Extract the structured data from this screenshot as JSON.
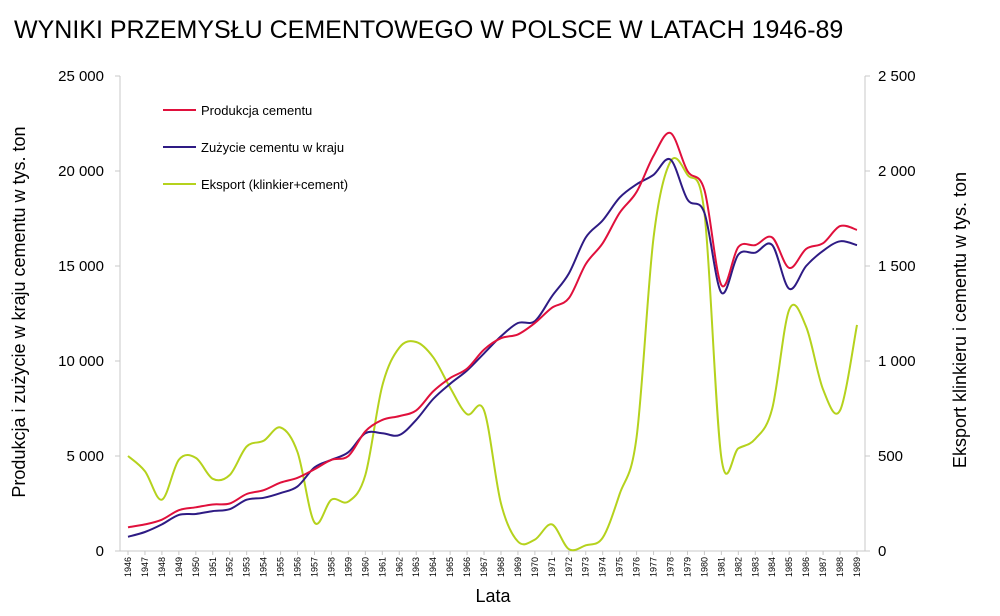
{
  "chart_data": {
    "type": "line",
    "title": "WYNIKI PRZEMYSŁU CEMENTOWEGO W POLSCE W LATACH 1946-89",
    "xlabel": "Lata",
    "ylabel_left": "Produkcja i zużycie w kraju cementu w tys. ton",
    "ylabel_right": "Eksport klinkieru i cementu w tys. ton",
    "ylim_left": [
      0,
      25000
    ],
    "ylim_right": [
      0,
      2500
    ],
    "yticks_left": [
      "0",
      "5 000",
      "10 000",
      "15 000",
      "20 000",
      "25 000"
    ],
    "yticks_right": [
      "0",
      "500",
      "1 000",
      "1 500",
      "2 000",
      "2 500"
    ],
    "yticks_left_values": [
      0,
      5000,
      10000,
      15000,
      20000,
      25000
    ],
    "yticks_right_values": [
      0,
      500,
      1000,
      1500,
      2000,
      2500
    ],
    "grid": false,
    "legend_position": "top-left",
    "x": [
      1946,
      1947,
      1948,
      1949,
      1950,
      1951,
      1952,
      1953,
      1954,
      1955,
      1956,
      1957,
      1958,
      1959,
      1960,
      1961,
      1962,
      1963,
      1964,
      1965,
      1966,
      1967,
      1968,
      1969,
      1970,
      1971,
      1972,
      1973,
      1974,
      1975,
      1976,
      1977,
      1978,
      1979,
      1980,
      1981,
      1982,
      1983,
      1984,
      1985,
      1986,
      1987,
      1988,
      1989
    ],
    "series": [
      {
        "name": "Produkcja cementu",
        "axis": "left",
        "color": "#e0103c",
        "values": [
          1250,
          1400,
          1650,
          2150,
          2300,
          2450,
          2500,
          3000,
          3200,
          3600,
          3850,
          4300,
          4800,
          5000,
          6300,
          6900,
          7100,
          7400,
          8400,
          9100,
          9600,
          10600,
          11200,
          11400,
          12000,
          12800,
          13300,
          15100,
          16200,
          17800,
          18900,
          20800,
          22000,
          20000,
          19000,
          14000,
          16000,
          16100,
          16500,
          14900,
          15900,
          16200,
          17100,
          16900
        ]
      },
      {
        "name": "Zużycie cementu w kraju",
        "axis": "left",
        "color": "#2e1b84",
        "values": [
          750,
          1000,
          1400,
          1900,
          1950,
          2100,
          2200,
          2700,
          2800,
          3050,
          3400,
          4400,
          4800,
          5200,
          6200,
          6200,
          6100,
          6900,
          8000,
          8800,
          9500,
          10400,
          11300,
          12000,
          12100,
          13400,
          14600,
          16500,
          17400,
          18600,
          19300,
          19800,
          20600,
          18500,
          17800,
          13600,
          15600,
          15700,
          16100,
          13800,
          15000,
          15800,
          16300,
          16100
        ]
      },
      {
        "name": "Eksport (klinkier+cement)",
        "axis": "right",
        "color": "#b5d21d",
        "values": [
          500,
          420,
          270,
          480,
          490,
          380,
          400,
          550,
          580,
          650,
          520,
          150,
          270,
          260,
          400,
          870,
          1070,
          1100,
          1020,
          860,
          720,
          740,
          250,
          50,
          60,
          140,
          10,
          30,
          70,
          300,
          600,
          1650,
          2050,
          1980,
          1780,
          490,
          540,
          590,
          750,
          1270,
          1180,
          850,
          740,
          1190
        ]
      }
    ]
  }
}
